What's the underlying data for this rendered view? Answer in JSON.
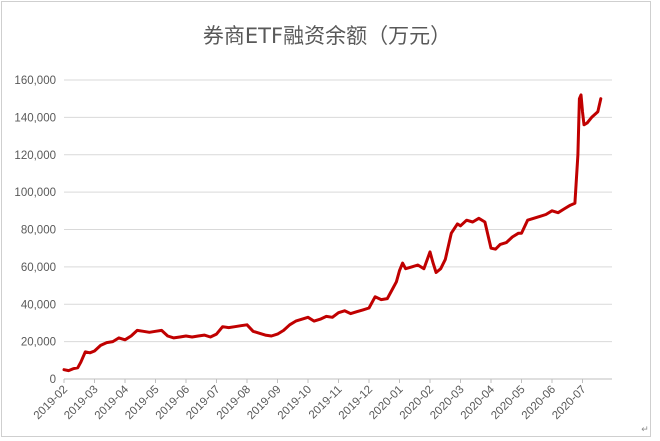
{
  "chart_data": {
    "type": "line",
    "title": "券商ETF融资余额（万元）",
    "xlabel": "",
    "ylabel": "",
    "ylim": [
      0,
      160000
    ],
    "yticks": [
      0,
      20000,
      40000,
      60000,
      80000,
      100000,
      120000,
      140000,
      160000
    ],
    "ytick_labels": [
      "0",
      "20,000",
      "40,000",
      "60,000",
      "80,000",
      "100,000",
      "120,000",
      "140,000",
      "160,000"
    ],
    "xticks": [
      "2019-02",
      "2019-03",
      "2019-04",
      "2019-05",
      "2019-06",
      "2019-07",
      "2019-08",
      "2019-09",
      "2019-10",
      "2019-11",
      "2019-12",
      "2020-01",
      "2020-02",
      "2020-03",
      "2020-04",
      "2020-05",
      "2020-06",
      "2020-07"
    ],
    "grid": "horizontal",
    "legend": "none",
    "line_color": "#C00000",
    "series": [
      {
        "x": [
          0,
          0.15,
          0.3,
          0.45,
          0.55,
          0.7,
          0.85,
          1.0,
          1.2,
          1.4,
          1.6,
          1.8,
          2.0,
          2.2,
          2.4,
          2.6,
          2.8,
          3.0,
          3.2,
          3.4,
          3.6,
          3.8,
          4.0,
          4.2,
          4.4,
          4.6,
          4.8,
          5.0,
          5.2,
          5.4,
          5.6,
          5.8,
          6.0,
          6.2,
          6.4,
          6.6,
          6.8,
          7.0,
          7.2,
          7.4,
          7.6,
          7.8,
          8.0,
          8.2,
          8.4,
          8.6,
          8.8,
          9.0,
          9.2,
          9.4,
          9.6,
          9.8,
          10.0,
          10.2,
          10.4,
          10.6,
          10.8,
          10.9,
          11.0,
          11.1,
          11.2,
          11.4,
          11.6,
          11.8,
          12.0,
          12.1,
          12.2,
          12.35,
          12.5,
          12.7,
          12.9,
          13.0,
          13.2,
          13.4,
          13.6,
          13.8,
          14.0,
          14.15,
          14.3,
          14.5,
          14.7,
          14.9,
          15.0,
          15.2,
          15.4,
          15.6,
          15.8,
          16.0,
          16.2,
          16.4,
          16.6,
          16.75,
          16.85,
          16.9,
          16.95,
          17.0,
          17.05,
          17.15,
          17.3,
          17.5,
          17.6
        ],
        "values": [
          5000,
          4500,
          5500,
          6000,
          9000,
          14500,
          14000,
          15000,
          18000,
          19500,
          20000,
          22000,
          21000,
          23000,
          26000,
          25500,
          25000,
          25500,
          26000,
          23000,
          22000,
          22500,
          23000,
          22500,
          23000,
          23500,
          22500,
          24000,
          28000,
          27500,
          28000,
          28500,
          29000,
          25500,
          24500,
          23500,
          23000,
          24000,
          26000,
          29000,
          31000,
          32000,
          33000,
          31000,
          32000,
          33500,
          33000,
          35500,
          36500,
          35000,
          36000,
          37000,
          38000,
          44000,
          42500,
          43000,
          49000,
          52000,
          58000,
          62000,
          59000,
          60000,
          61000,
          59000,
          68000,
          62000,
          57000,
          59000,
          64000,
          78000,
          83000,
          82000,
          85000,
          84000,
          86000,
          84000,
          70000,
          69500,
          72000,
          73000,
          76000,
          78000,
          78000,
          85000,
          86000,
          87000,
          88000,
          90000,
          89000,
          91000,
          93000,
          94000,
          120000,
          150000,
          152000,
          143000,
          136000,
          137000,
          140000,
          143000,
          150000
        ]
      }
    ]
  }
}
